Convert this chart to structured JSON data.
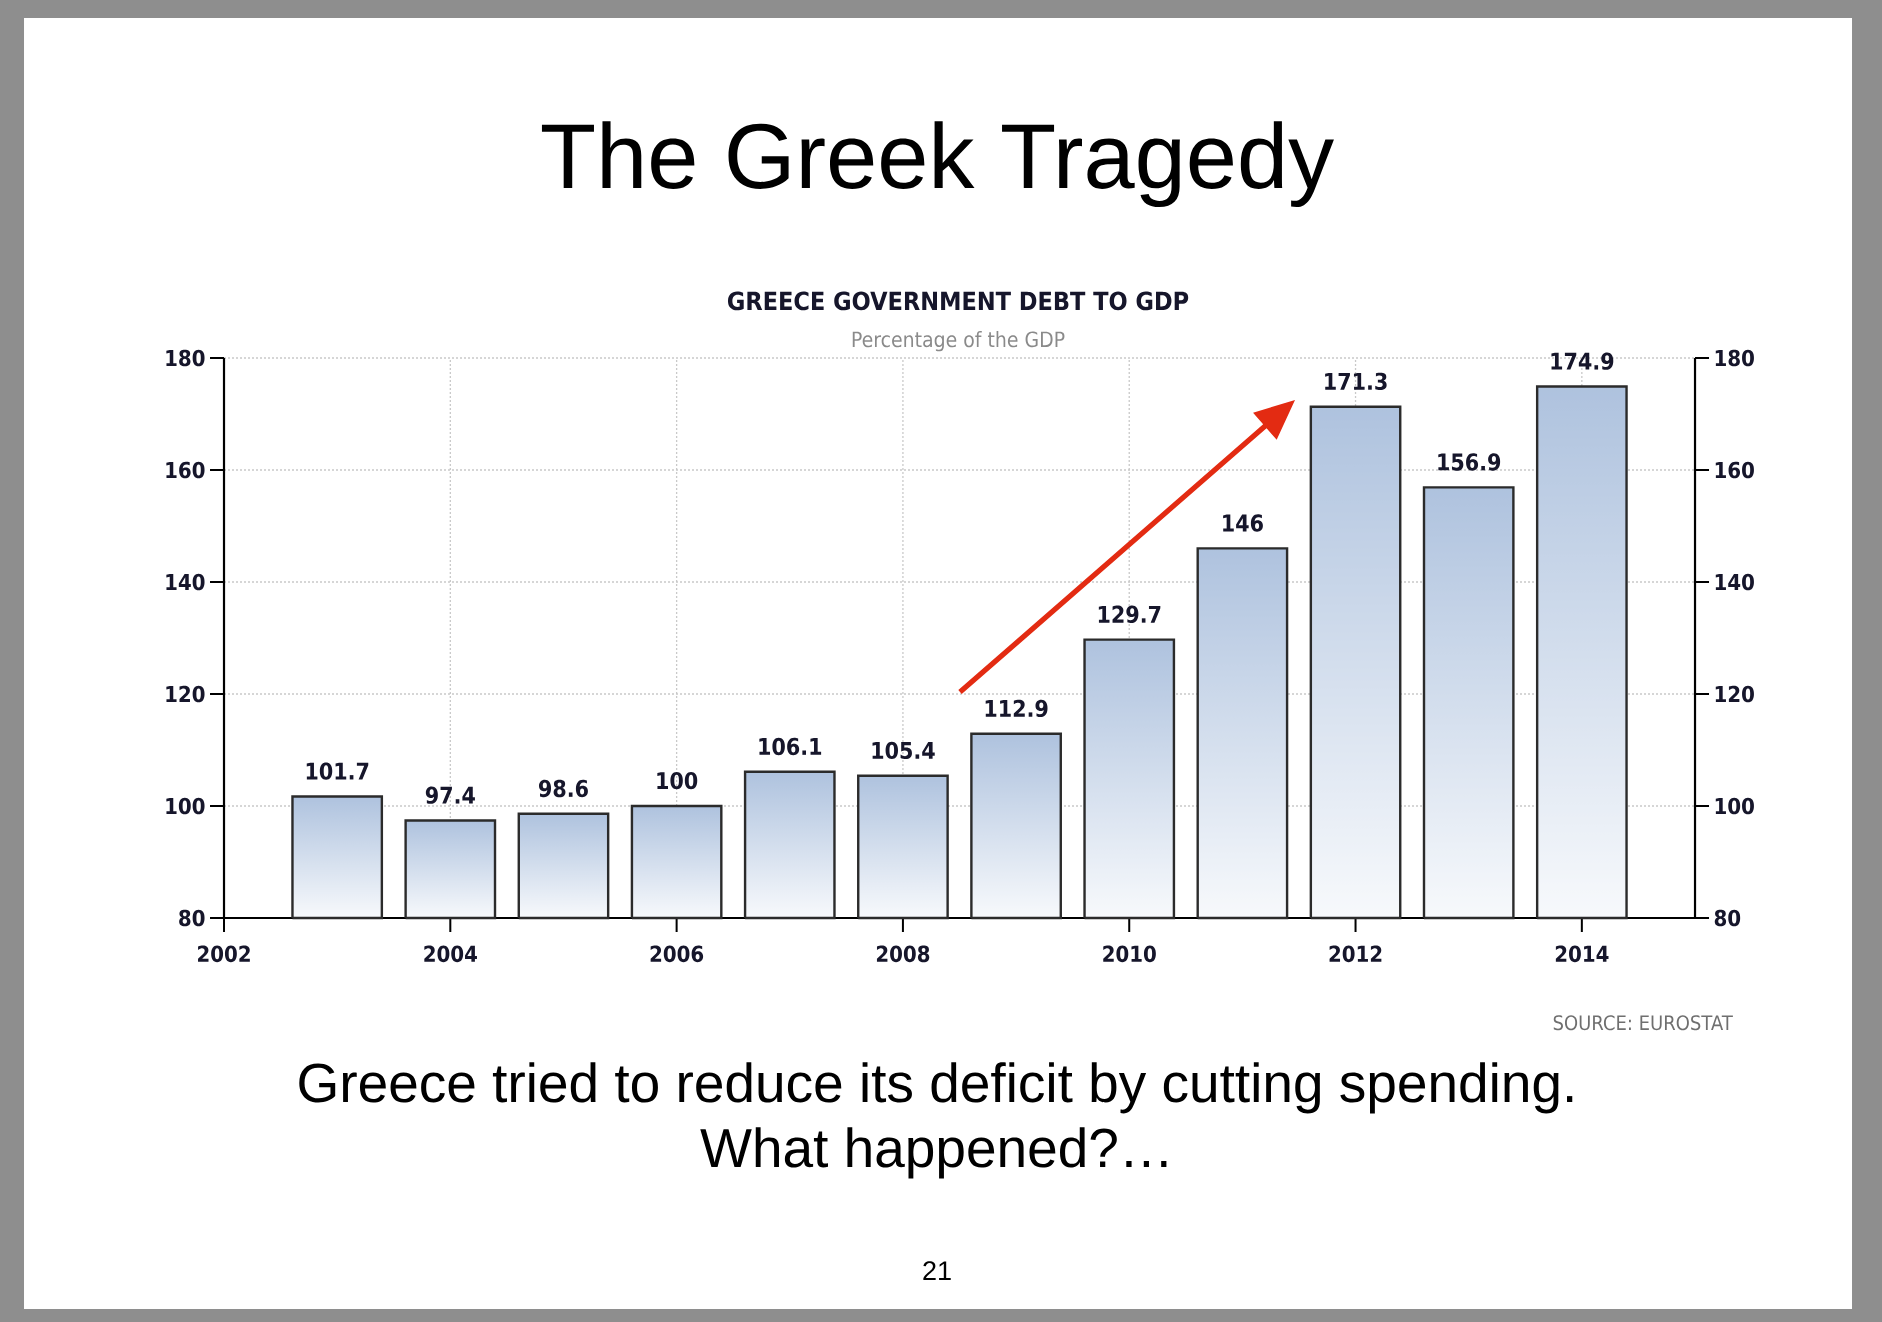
{
  "chart_data": {
    "type": "bar",
    "title": "The Greek Tragedy",
    "subtitle": "GREECE GOVERNMENT DEBT TO GDP",
    "x": [
      2003,
      2004,
      2005,
      2006,
      2007,
      2008,
      2009,
      2010,
      2011,
      2012,
      2013,
      2014
    ],
    "series": [
      {
        "color": "#aec2de",
        "data_labels": true,
        "values": [
          101.7,
          97.4,
          98.6,
          100,
          106.1,
          105.4,
          112.9,
          129.7,
          146,
          171.3,
          156.9,
          174.9
        ]
      }
    ],
    "xlim": [
      2002,
      2015
    ],
    "xticks": [
      2002,
      2004,
      2006,
      2008,
      2010,
      2012,
      2014
    ],
    "ylim": [
      80,
      180
    ],
    "yticks": [
      80,
      100,
      120,
      140,
      160,
      180
    ],
    "y2lim": [
      80,
      180
    ],
    "y2ticks": [
      80,
      100,
      120,
      140,
      160,
      180
    ],
    "grid": true,
    "annotations": [
      "Percentage of the GDP",
      "SOURCE: EUROSTAT",
      "Greece tried to reduce its deficit by cutting spending.",
      "What happened?…",
      "21"
    ]
  }
}
